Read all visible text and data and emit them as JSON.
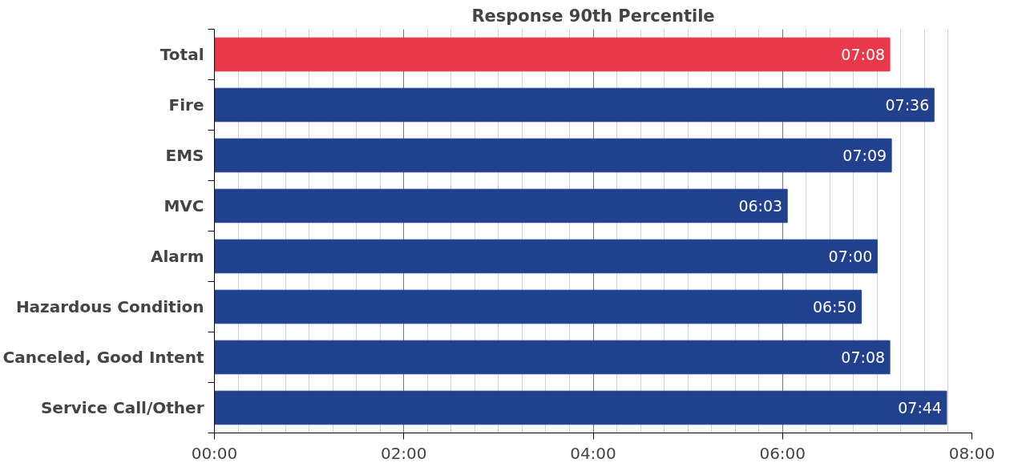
{
  "chart_data": {
    "type": "bar",
    "orientation": "horizontal",
    "title": "Response 90th Percentile",
    "categories": [
      "Total",
      "Fire",
      "EMS",
      "MVC",
      "Alarm",
      "Hazardous Condition",
      "Canceled, Good Intent",
      "Service Call/Other"
    ],
    "values": [
      7.133,
      7.6,
      7.15,
      6.05,
      7.0,
      6.833,
      7.133,
      7.733
    ],
    "colors": [
      "#e8384a",
      "#21418f",
      "#21418f",
      "#21418f",
      "#21418f",
      "#21418f",
      "#21418f",
      "#21418f"
    ],
    "value_labels": [
      "07:08",
      "07:36",
      "07:09",
      "06:03",
      "07:00",
      "06:50",
      "07:08",
      "07:44"
    ],
    "xlim": [
      0,
      8
    ],
    "xticks": [
      {
        "value": 0,
        "label": "00:00"
      },
      {
        "value": 2,
        "label": "02:00"
      },
      {
        "value": 4,
        "label": "04:00"
      },
      {
        "value": 6,
        "label": "06:00"
      },
      {
        "value": 8,
        "label": "08:00"
      }
    ],
    "grid": "x"
  }
}
